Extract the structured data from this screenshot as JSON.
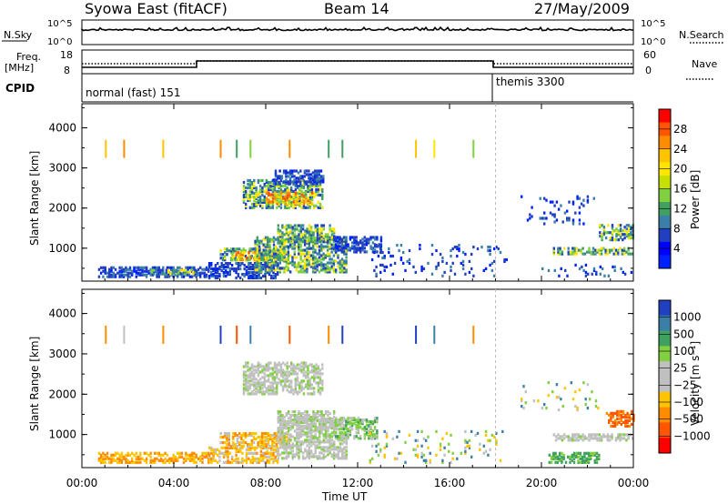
{
  "header": {
    "title": "Syowa East (fitACF)",
    "beam": "Beam 14",
    "date": "27/May/2009"
  },
  "top_panels": {
    "nsky": {
      "label": "N.Sky",
      "tick_high": "10^5",
      "tick_low": "10^0"
    },
    "nsearch": {
      "label": "N.Search",
      "tick_high": "10^5",
      "tick_low": "10^0"
    },
    "freq": {
      "label_line1": "Freq.",
      "label_line2": "[MHz]",
      "tick_high": "18",
      "tick_low": "8"
    },
    "nave": {
      "label": "Nave",
      "tick_high": "60",
      "tick_low": "0"
    },
    "cpid": {
      "label": "CPID",
      "mode1": "normal (fast) 151",
      "mode2": "themis 3300"
    }
  },
  "x_axis": {
    "label": "Time UT",
    "ticks": [
      "00:00",
      "04:00",
      "08:00",
      "12:00",
      "16:00",
      "20:00",
      "00:00"
    ]
  },
  "colorbars": {
    "power": {
      "label": "Power [dB]",
      "ticks": [
        "28",
        "24",
        "20",
        "16",
        "12",
        "8",
        "4"
      ],
      "colors": [
        "#ff0000",
        "#ff5500",
        "#ff8c00",
        "#ffc400",
        "#ffe600",
        "#c8e000",
        "#80d040",
        "#3fa060",
        "#3b7fa8",
        "#2040c0",
        "#0000ff",
        "#0020ff"
      ]
    },
    "velocity": {
      "label": "Velocity [m s⁻¹]",
      "ticks": [
        "1000",
        "500",
        "100",
        "25",
        "−25",
        "−100",
        "−500",
        "−1000"
      ],
      "colors": [
        "#2040c0",
        "#3b7fa8",
        "#3fa060",
        "#80d040",
        "#c0c0c0",
        "#c0c0c0",
        "#ffc400",
        "#ff8c00",
        "#ff5500",
        "#ff0000"
      ]
    }
  },
  "chart_data": [
    {
      "type": "heatmap",
      "name": "power",
      "ylabel": "Slant Range [km]",
      "xlabel": "Time UT",
      "xlim_hours": [
        0,
        24
      ],
      "ylim": [
        180,
        4600
      ],
      "yticks": [
        "1000",
        "2000",
        "3000",
        "4000"
      ],
      "mode_change_hour": 18.0,
      "patches": [
        {
          "t0": 0.7,
          "t1": 5.5,
          "r0": 280,
          "r1": 520,
          "level": "low"
        },
        {
          "t0": 3.0,
          "t1": 5.0,
          "r0": 350,
          "r1": 450,
          "level": "mid"
        },
        {
          "t0": 5.5,
          "t1": 8.5,
          "r0": 250,
          "r1": 650,
          "level": "low"
        },
        {
          "t0": 6.0,
          "t1": 8.8,
          "r0": 700,
          "r1": 1000,
          "level": "mid"
        },
        {
          "t0": 6.5,
          "t1": 8.0,
          "r0": 700,
          "r1": 900,
          "level": "high"
        },
        {
          "t0": 7.5,
          "t1": 11.5,
          "r0": 400,
          "r1": 1300,
          "level": "mid"
        },
        {
          "t0": 8.5,
          "t1": 11.0,
          "r0": 1150,
          "r1": 1600,
          "level": "mid"
        },
        {
          "t0": 7.0,
          "t1": 10.5,
          "r0": 2000,
          "r1": 2700,
          "level": "mid"
        },
        {
          "t0": 8.0,
          "t1": 10.0,
          "r0": 2100,
          "r1": 2400,
          "level": "high"
        },
        {
          "t0": 8.3,
          "t1": 10.5,
          "r0": 2600,
          "r1": 2950,
          "level": "low"
        },
        {
          "t0": 11.0,
          "t1": 13.0,
          "r0": 900,
          "r1": 1300,
          "level": "low"
        },
        {
          "t0": 12.5,
          "t1": 18.5,
          "r0": 300,
          "r1": 1100,
          "level": "sparse"
        },
        {
          "t0": 20.5,
          "t1": 24.0,
          "r0": 850,
          "r1": 1000,
          "level": "mid"
        },
        {
          "t0": 22.5,
          "t1": 24.0,
          "r0": 1200,
          "r1": 1600,
          "level": "mid"
        },
        {
          "t0": 20.0,
          "t1": 24.0,
          "r0": 300,
          "r1": 600,
          "level": "sparse"
        },
        {
          "t0": 19.0,
          "t1": 22.5,
          "r0": 1600,
          "r1": 2300,
          "level": "sparse"
        }
      ],
      "stripe_hours": [
        1.0,
        1.8,
        3.5,
        6.0,
        6.7,
        7.3,
        9.0,
        10.7,
        11.3,
        14.5,
        15.3,
        17.0
      ],
      "stripe_range": [
        3250,
        3700
      ]
    },
    {
      "type": "heatmap",
      "name": "velocity",
      "ylabel": "Slant Range [km]",
      "xlabel": "Time UT",
      "xlim_hours": [
        0,
        24
      ],
      "ylim": [
        180,
        4600
      ],
      "yticks": [
        "1000",
        "2000",
        "3000",
        "4000"
      ],
      "mode_change_hour": 18.0,
      "patches": [
        {
          "t0": 0.7,
          "t1": 5.5,
          "r0": 300,
          "r1": 550,
          "level": "neg100"
        },
        {
          "t0": 5.5,
          "t1": 8.5,
          "r0": 300,
          "r1": 700,
          "level": "neg25"
        },
        {
          "t0": 6.0,
          "t1": 9.0,
          "r0": 700,
          "r1": 1050,
          "level": "neg25"
        },
        {
          "t0": 8.5,
          "t1": 11.5,
          "r0": 400,
          "r1": 1400,
          "level": "zero"
        },
        {
          "t0": 8.5,
          "t1": 11.0,
          "r0": 1150,
          "r1": 1600,
          "level": "zero"
        },
        {
          "t0": 7.0,
          "t1": 10.5,
          "r0": 2000,
          "r1": 2800,
          "level": "zero"
        },
        {
          "t0": 11.0,
          "t1": 12.8,
          "r0": 900,
          "r1": 1400,
          "level": "pos100"
        },
        {
          "t0": 12.5,
          "t1": 18.5,
          "r0": 300,
          "r1": 1100,
          "level": "sparse"
        },
        {
          "t0": 20.5,
          "t1": 24.0,
          "r0": 850,
          "r1": 1000,
          "level": "zero"
        },
        {
          "t0": 22.8,
          "t1": 24.0,
          "r0": 1200,
          "r1": 1600,
          "level": "neg500"
        },
        {
          "t0": 20.3,
          "t1": 22.5,
          "r0": 300,
          "r1": 550,
          "level": "pos500"
        },
        {
          "t0": 19.0,
          "t1": 22.5,
          "r0": 1600,
          "r1": 2300,
          "level": "sparse"
        }
      ],
      "stripe_hours": [
        1.0,
        1.8,
        3.5,
        6.0,
        6.7,
        7.3,
        9.0,
        10.7,
        11.3,
        14.5,
        15.3,
        17.0
      ],
      "stripe_range": [
        3250,
        3700
      ]
    }
  ]
}
